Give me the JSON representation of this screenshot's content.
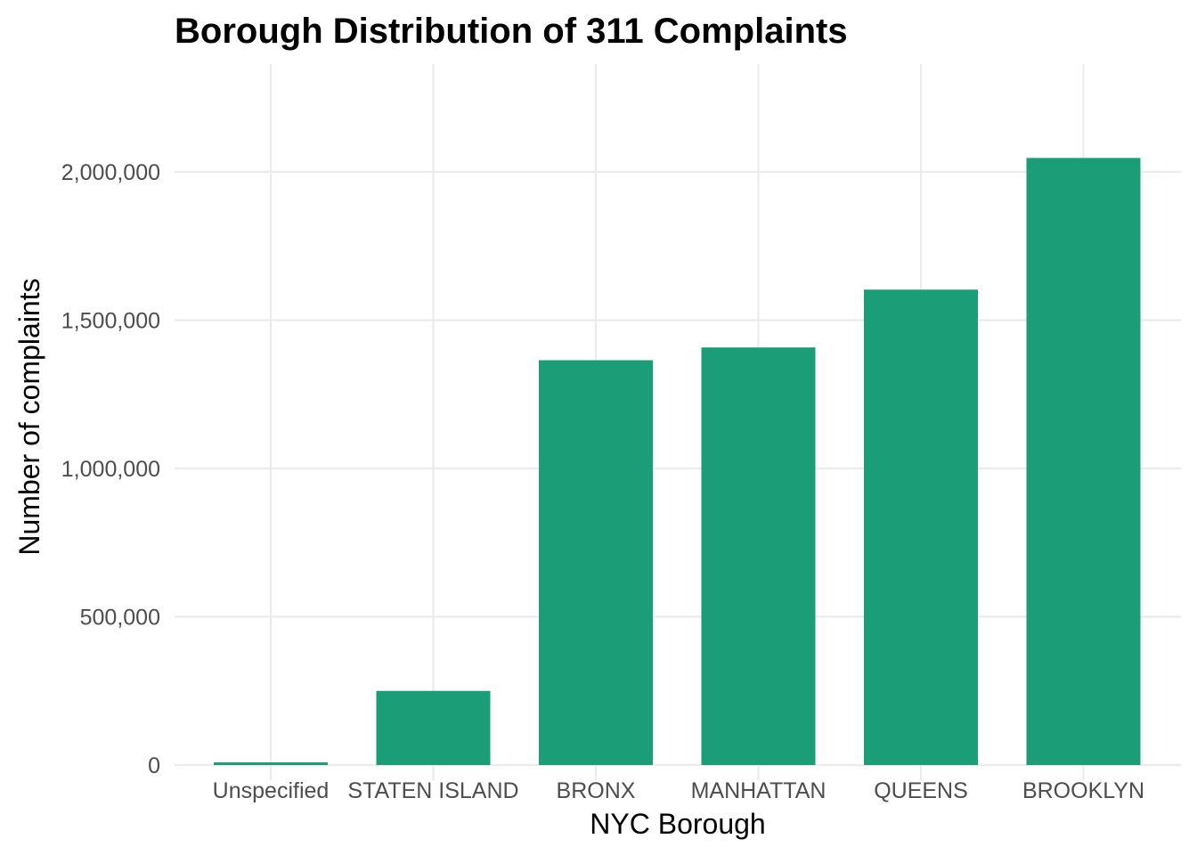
{
  "chart_data": {
    "type": "bar",
    "title": "Borough Distribution of 311 Complaints",
    "xlabel": "NYC Borough",
    "ylabel": "Number of complaints",
    "categories": [
      "Unspecified",
      "STATEN ISLAND",
      "BRONX",
      "MANHATTAN",
      "QUEENS",
      "BROOKLYN"
    ],
    "values": [
      9000,
      250000,
      1365000,
      1408000,
      1603000,
      2047000
    ],
    "ylim": [
      0,
      2300000
    ],
    "yticks": [
      0,
      500000,
      1000000,
      1500000,
      2000000
    ],
    "ytick_labels": [
      "0",
      "500,000",
      "1,000,000",
      "1,500,000",
      "2,000,000"
    ],
    "bar_color": "#1b9e77",
    "grid": true,
    "legend": "none"
  }
}
